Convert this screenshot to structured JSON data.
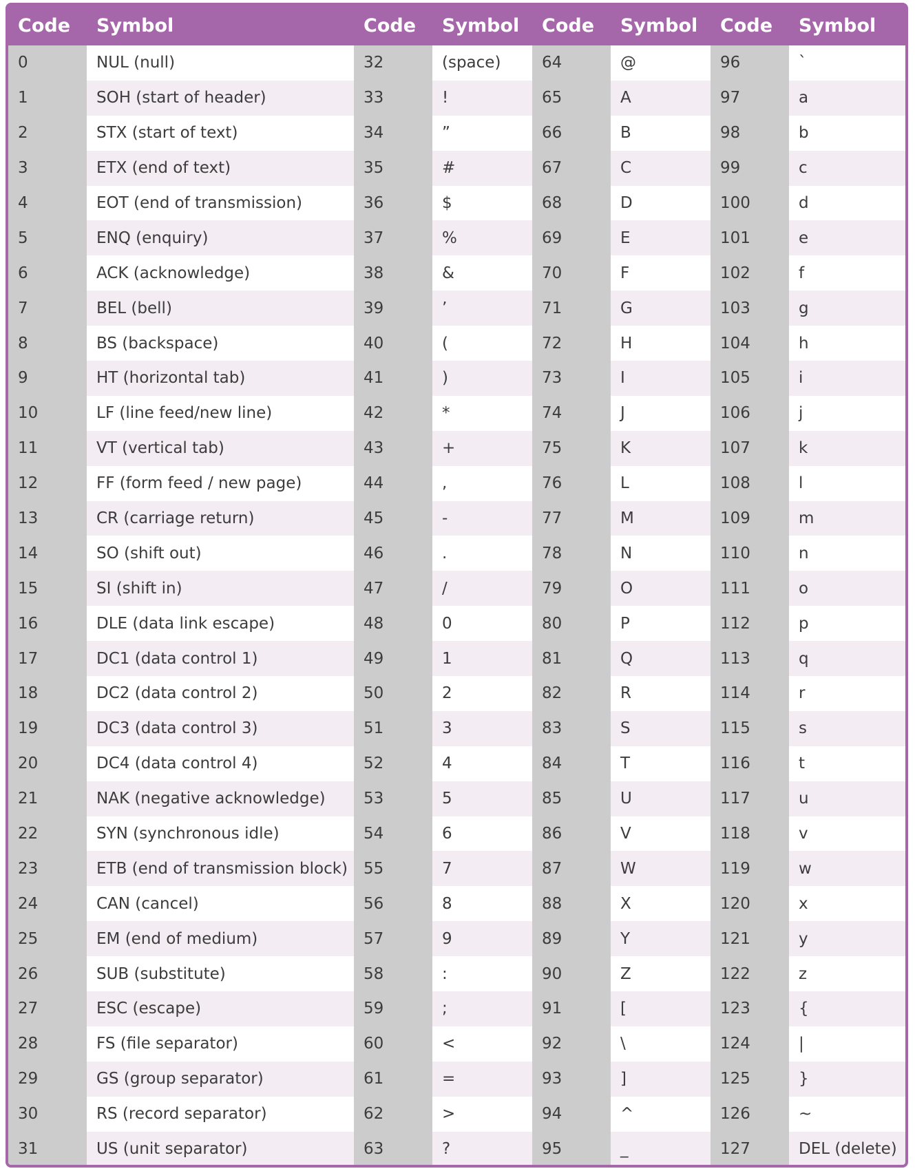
{
  "header": {
    "code": "Code",
    "symbol": "Symbol"
  },
  "rows": [
    [
      [
        "0",
        "NUL (null)"
      ],
      [
        "32",
        "(space)"
      ],
      [
        "64",
        "@"
      ],
      [
        "96",
        "`"
      ]
    ],
    [
      [
        "1",
        "SOH (start of header)"
      ],
      [
        "33",
        "!"
      ],
      [
        "65",
        "A"
      ],
      [
        "97",
        "a"
      ]
    ],
    [
      [
        "2",
        "STX (start of text)"
      ],
      [
        "34",
        "”"
      ],
      [
        "66",
        "B"
      ],
      [
        "98",
        "b"
      ]
    ],
    [
      [
        "3",
        "ETX (end of text)"
      ],
      [
        "35",
        "#"
      ],
      [
        "67",
        "C"
      ],
      [
        "99",
        "c"
      ]
    ],
    [
      [
        "4",
        "EOT (end of transmission)"
      ],
      [
        "36",
        "$"
      ],
      [
        "68",
        "D"
      ],
      [
        "100",
        "d"
      ]
    ],
    [
      [
        "5",
        "ENQ (enquiry)"
      ],
      [
        "37",
        "%"
      ],
      [
        "69",
        "E"
      ],
      [
        "101",
        "e"
      ]
    ],
    [
      [
        "6",
        "ACK (acknowledge)"
      ],
      [
        "38",
        "&"
      ],
      [
        "70",
        "F"
      ],
      [
        "102",
        "f"
      ]
    ],
    [
      [
        "7",
        "BEL (bell)"
      ],
      [
        "39",
        "’"
      ],
      [
        "71",
        "G"
      ],
      [
        "103",
        "g"
      ]
    ],
    [
      [
        "8",
        "BS (backspace)"
      ],
      [
        "40",
        "("
      ],
      [
        "72",
        "H"
      ],
      [
        "104",
        "h"
      ]
    ],
    [
      [
        "9",
        "HT (horizontal tab)"
      ],
      [
        "41",
        ")"
      ],
      [
        "73",
        "I"
      ],
      [
        "105",
        "i"
      ]
    ],
    [
      [
        "10",
        "LF (line feed/new line)"
      ],
      [
        "42",
        "*"
      ],
      [
        "74",
        "J"
      ],
      [
        "106",
        "j"
      ]
    ],
    [
      [
        "11",
        "VT (vertical tab)"
      ],
      [
        "43",
        "+"
      ],
      [
        "75",
        "K"
      ],
      [
        "107",
        "k"
      ]
    ],
    [
      [
        "12",
        "FF (form feed / new page)"
      ],
      [
        "44",
        ","
      ],
      [
        "76",
        "L"
      ],
      [
        "108",
        "l"
      ]
    ],
    [
      [
        "13",
        "CR (carriage return)"
      ],
      [
        "45",
        "-"
      ],
      [
        "77",
        "M"
      ],
      [
        "109",
        "m"
      ]
    ],
    [
      [
        "14",
        "SO (shift out)"
      ],
      [
        "46",
        "."
      ],
      [
        "78",
        "N"
      ],
      [
        "110",
        "n"
      ]
    ],
    [
      [
        "15",
        "SI (shift in)"
      ],
      [
        "47",
        "/"
      ],
      [
        "79",
        "O"
      ],
      [
        "111",
        "o"
      ]
    ],
    [
      [
        "16",
        "DLE (data link escape)"
      ],
      [
        "48",
        "0"
      ],
      [
        "80",
        "P"
      ],
      [
        "112",
        "p"
      ]
    ],
    [
      [
        "17",
        "DC1 (data control 1)"
      ],
      [
        "49",
        "1"
      ],
      [
        "81",
        "Q"
      ],
      [
        "113",
        "q"
      ]
    ],
    [
      [
        "18",
        "DC2 (data control 2)"
      ],
      [
        "50",
        "2"
      ],
      [
        "82",
        "R"
      ],
      [
        "114",
        "r"
      ]
    ],
    [
      [
        "19",
        "DC3 (data control 3)"
      ],
      [
        "51",
        "3"
      ],
      [
        "83",
        "S"
      ],
      [
        "115",
        "s"
      ]
    ],
    [
      [
        "20",
        "DC4 (data control 4)"
      ],
      [
        "52",
        "4"
      ],
      [
        "84",
        "T"
      ],
      [
        "116",
        "t"
      ]
    ],
    [
      [
        "21",
        "NAK (negative acknowledge)"
      ],
      [
        "53",
        "5"
      ],
      [
        "85",
        "U"
      ],
      [
        "117",
        "u"
      ]
    ],
    [
      [
        "22",
        "SYN (synchronous idle)"
      ],
      [
        "54",
        "6"
      ],
      [
        "86",
        "V"
      ],
      [
        "118",
        "v"
      ]
    ],
    [
      [
        "23",
        "ETB (end of transmission block)"
      ],
      [
        "55",
        "7"
      ],
      [
        "87",
        "W"
      ],
      [
        "119",
        "w"
      ]
    ],
    [
      [
        "24",
        "CAN (cancel)"
      ],
      [
        "56",
        "8"
      ],
      [
        "88",
        "X"
      ],
      [
        "120",
        "x"
      ]
    ],
    [
      [
        "25",
        "EM (end of medium)"
      ],
      [
        "57",
        "9"
      ],
      [
        "89",
        "Y"
      ],
      [
        "121",
        "y"
      ]
    ],
    [
      [
        "26",
        "SUB (substitute)"
      ],
      [
        "58",
        ":"
      ],
      [
        "90",
        "Z"
      ],
      [
        "122",
        "z"
      ]
    ],
    [
      [
        "27",
        "ESC (escape)"
      ],
      [
        "59",
        ";"
      ],
      [
        "91",
        "["
      ],
      [
        "123",
        "{"
      ]
    ],
    [
      [
        "28",
        "FS (file separator)"
      ],
      [
        "60",
        "<"
      ],
      [
        "92",
        "\\"
      ],
      [
        "124",
        "|"
      ]
    ],
    [
      [
        "29",
        "GS (group separator)"
      ],
      [
        "61",
        "="
      ],
      [
        "93",
        "]"
      ],
      [
        "125",
        "}"
      ]
    ],
    [
      [
        "30",
        "RS (record separator)"
      ],
      [
        "62",
        ">"
      ],
      [
        "94",
        "^"
      ],
      [
        "126",
        "~"
      ]
    ],
    [
      [
        "31",
        "US (unit separator)"
      ],
      [
        "63",
        "?"
      ],
      [
        "95",
        "_"
      ],
      [
        "127",
        "DEL (delete)"
      ]
    ]
  ]
}
